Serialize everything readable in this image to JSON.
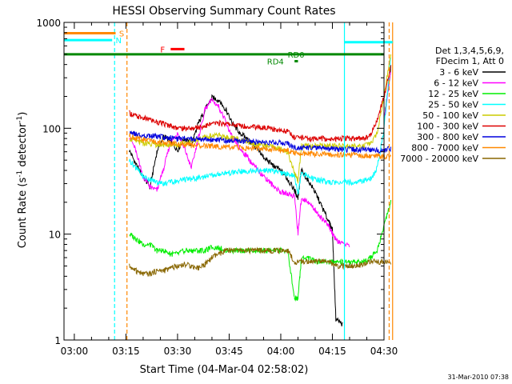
{
  "chart_data": {
    "type": "line",
    "title": "HESSI Observing Summary Count Rates",
    "xlabel": "Start Time (04-Mar-04 02:58:02)",
    "ylabel_main": "Count Rate (s",
    "ylabel_sup1": "-1",
    "ylabel_mid": " detector",
    "ylabel_sup2": "-1",
    "ylabel_end": ")",
    "yscale": "log",
    "ylim": [
      1,
      1000
    ],
    "xlim_minutes": [
      -3,
      90
    ],
    "x_origin": "03:00",
    "x_ticks": [
      {
        "m": 0,
        "label": "03:00"
      },
      {
        "m": 15,
        "label": "03:15"
      },
      {
        "m": 30,
        "label": "03:30"
      },
      {
        "m": 45,
        "label": "03:45"
      },
      {
        "m": 60,
        "label": "04:00"
      },
      {
        "m": 75,
        "label": "04:15"
      },
      {
        "m": 90,
        "label": "04:30"
      }
    ],
    "y_ticks": [
      {
        "v": 1,
        "label": "1"
      },
      {
        "v": 10,
        "label": "10"
      },
      {
        "v": 100,
        "label": "100"
      },
      {
        "v": 1000,
        "label": "1000"
      }
    ],
    "legend_header": [
      "Det 1,3,4,5,6,9,",
      "FDecim 1, Att 0"
    ],
    "legend_position": "right",
    "series": [
      {
        "name": "3 - 6 keV",
        "color": "#000000",
        "x": [
          16,
          18,
          20,
          22,
          24,
          26,
          28,
          30,
          32,
          34,
          36,
          38,
          40,
          42,
          44,
          46,
          48,
          50,
          52,
          54,
          56,
          58,
          60,
          62,
          64,
          65,
          66,
          68,
          70,
          72,
          74,
          75,
          76,
          78,
          80,
          82,
          84,
          86,
          88,
          90,
          92
        ],
        "y": [
          62,
          45,
          35,
          28,
          60,
          85,
          75,
          62,
          80,
          70,
          110,
          150,
          195,
          185,
          150,
          110,
          92,
          80,
          70,
          58,
          50,
          44,
          40,
          33,
          26,
          22,
          40,
          32,
          25,
          18,
          13,
          11,
          1.6,
          1.4,
          null,
          null,
          null,
          null,
          null,
          120,
          380
        ]
      },
      {
        "name": "6 - 12 keV",
        "color": "#ff00ff",
        "x": [
          16,
          18,
          20,
          22,
          24,
          26,
          28,
          30,
          32,
          34,
          36,
          38,
          40,
          42,
          44,
          46,
          48,
          50,
          52,
          54,
          56,
          58,
          60,
          62,
          64,
          65,
          66,
          68,
          70,
          72,
          74,
          75,
          76,
          78,
          80,
          82,
          84,
          86,
          88,
          90,
          92
        ],
        "y": [
          85,
          60,
          35,
          28,
          26,
          42,
          75,
          90,
          65,
          42,
          80,
          150,
          185,
          160,
          115,
          80,
          65,
          55,
          45,
          38,
          33,
          28,
          25,
          24,
          23,
          10,
          22,
          20,
          17,
          14,
          12,
          10,
          9,
          8,
          8,
          null,
          null,
          null,
          null,
          120,
          350
        ]
      },
      {
        "name": "12 - 25 keV",
        "color": "#00ee00",
        "x": [
          16,
          18,
          20,
          22,
          24,
          26,
          28,
          30,
          32,
          34,
          36,
          38,
          40,
          42,
          44,
          46,
          48,
          50,
          52,
          54,
          56,
          58,
          60,
          62,
          64,
          65,
          66,
          68,
          70,
          72,
          74,
          76,
          78,
          80,
          82,
          84,
          86,
          88,
          90,
          92
        ],
        "y": [
          10,
          9,
          8,
          8,
          7,
          7,
          6.5,
          6.5,
          7,
          7,
          7,
          7,
          7.5,
          7.5,
          7,
          7,
          7,
          7,
          7,
          7,
          7,
          7,
          7,
          7,
          2.5,
          2.5,
          6,
          6,
          5.5,
          5.5,
          5.5,
          5.5,
          5.5,
          5.5,
          5.5,
          5.5,
          6,
          7,
          12,
          20
        ]
      },
      {
        "name": "25 - 50 keV",
        "color": "#00ffff",
        "x": [
          16,
          18,
          20,
          22,
          24,
          26,
          28,
          30,
          32,
          34,
          36,
          38,
          40,
          42,
          44,
          46,
          48,
          50,
          52,
          54,
          56,
          58,
          60,
          62,
          64,
          65,
          66,
          68,
          70,
          72,
          74,
          76,
          78,
          80,
          82,
          84,
          86,
          88,
          90,
          92
        ],
        "y": [
          50,
          42,
          35,
          33,
          31,
          30,
          31,
          32,
          33,
          33,
          34,
          35,
          36,
          37,
          38,
          38,
          39,
          39,
          40,
          40,
          40,
          39,
          38,
          37,
          36,
          24,
          38,
          35,
          33,
          32,
          31,
          31,
          31,
          31,
          31,
          32,
          33,
          42,
          100,
          480
        ]
      },
      {
        "name": "50 - 100 keV",
        "color": "#cccc00",
        "x": [
          16,
          18,
          20,
          22,
          24,
          26,
          28,
          30,
          32,
          34,
          36,
          38,
          40,
          42,
          44,
          46,
          48,
          50,
          52,
          54,
          56,
          58,
          60,
          62,
          64,
          65,
          66,
          68,
          70,
          72,
          74,
          76,
          78,
          80,
          82,
          84,
          86,
          88,
          90,
          92
        ],
        "y": [
          80,
          75,
          72,
          72,
          70,
          70,
          70,
          70,
          72,
          75,
          78,
          82,
          85,
          85,
          82,
          80,
          78,
          75,
          72,
          70,
          68,
          66,
          64,
          60,
          38,
          32,
          68,
          68,
          68,
          68,
          68,
          68,
          68,
          68,
          68,
          68,
          70,
          90,
          200,
          500
        ]
      },
      {
        "name": "100 - 300 keV",
        "color": "#dd0000",
        "x": [
          16,
          18,
          20,
          22,
          24,
          26,
          28,
          30,
          32,
          34,
          36,
          38,
          40,
          42,
          44,
          46,
          48,
          50,
          52,
          54,
          56,
          58,
          60,
          62,
          64,
          66,
          68,
          70,
          72,
          74,
          76,
          78,
          80,
          82,
          84,
          86,
          88,
          90,
          92
        ],
        "y": [
          140,
          130,
          125,
          120,
          115,
          110,
          105,
          100,
          100,
          100,
          102,
          105,
          110,
          112,
          110,
          108,
          106,
          105,
          104,
          102,
          100,
          98,
          96,
          94,
          82,
          82,
          80,
          80,
          80,
          80,
          80,
          80,
          80,
          80,
          80,
          85,
          120,
          200,
          380
        ]
      },
      {
        "name": "300 - 800 keV",
        "color": "#0000dd",
        "x": [
          16,
          18,
          20,
          22,
          24,
          26,
          28,
          30,
          32,
          34,
          36,
          38,
          40,
          42,
          44,
          46,
          48,
          50,
          52,
          54,
          56,
          58,
          60,
          62,
          64,
          66,
          68,
          70,
          72,
          74,
          76,
          78,
          80,
          82,
          84,
          86,
          88,
          90,
          92
        ],
        "y": [
          90,
          88,
          86,
          85,
          84,
          82,
          81,
          80,
          80,
          79,
          79,
          78,
          78,
          77,
          77,
          76,
          76,
          75,
          75,
          74,
          74,
          73,
          73,
          72,
          66,
          66,
          65,
          65,
          64,
          64,
          64,
          63,
          63,
          63,
          63,
          63,
          62,
          62,
          65
        ]
      },
      {
        "name": "800 - 7000 keV",
        "color": "#ff8800",
        "x": [
          16,
          18,
          20,
          22,
          24,
          26,
          28,
          30,
          32,
          34,
          36,
          38,
          40,
          42,
          44,
          46,
          48,
          50,
          52,
          54,
          56,
          58,
          60,
          62,
          64,
          66,
          68,
          70,
          72,
          74,
          76,
          78,
          80,
          82,
          84,
          86,
          88,
          90,
          92
        ],
        "y": [
          85,
          80,
          78,
          76,
          74,
          73,
          72,
          71,
          70,
          69,
          69,
          68,
          68,
          67,
          67,
          66,
          66,
          65,
          65,
          64,
          64,
          63,
          63,
          62,
          58,
          58,
          58,
          57,
          57,
          57,
          56,
          56,
          56,
          56,
          55,
          55,
          55,
          54,
          54
        ]
      },
      {
        "name": "7000 - 20000 keV",
        "color": "#886600",
        "x": [
          16,
          18,
          20,
          22,
          24,
          26,
          28,
          30,
          32,
          34,
          36,
          38,
          40,
          42,
          44,
          46,
          48,
          50,
          52,
          54,
          56,
          58,
          60,
          62,
          64,
          66,
          68,
          70,
          72,
          74,
          76,
          78,
          80,
          82,
          84,
          86,
          88,
          90,
          92
        ],
        "y": [
          5,
          4.5,
          4.2,
          4.2,
          4.5,
          4.5,
          4.8,
          5,
          5.2,
          5,
          4.8,
          5.2,
          6,
          6.5,
          7,
          7,
          7,
          7,
          7,
          7,
          7,
          7,
          7,
          7,
          5.5,
          5.5,
          5.5,
          5.5,
          5.5,
          5.5,
          5,
          5,
          5,
          5,
          5.2,
          5.5,
          5.5,
          5.5,
          5.5
        ]
      }
    ],
    "annotations": [
      {
        "text": "S",
        "color": "#ff8800",
        "x0": -3,
        "x1": 12,
        "y": 790,
        "label_x": 13
      },
      {
        "text": "N",
        "color": "#00ffff",
        "x0": -3,
        "x1": 11,
        "y": 680,
        "label_x": 12
      },
      {
        "text": "F",
        "color": "#ff0000",
        "x0": 28,
        "x1": 32,
        "y": 560,
        "label_x": 25
      },
      {
        "text": "RD0",
        "color": "#008800",
        "x0": -3,
        "x1": 90,
        "y": 500,
        "label_x": 62
      },
      {
        "text": "RD4",
        "color": "#008800",
        "x0": 64,
        "x1": 65,
        "y": 430,
        "label_x": 56
      }
    ],
    "vlines": [
      {
        "m": 11.7,
        "color": "#00ffff",
        "style": "dashed"
      },
      {
        "m": 15.3,
        "color": "#ff8800",
        "style": "dashed"
      },
      {
        "m": 78.5,
        "color": "#00ffff",
        "style": "solid"
      },
      {
        "m": 91.5,
        "color": "#ff8800",
        "style": "dashed"
      },
      {
        "m": 92.5,
        "color": "#ff8800",
        "style": "solid"
      }
    ],
    "cyan_top": {
      "x0": 78.5,
      "x1": 92.5,
      "y": 650
    },
    "timestamp": "31-Mar-2010 07:38"
  }
}
